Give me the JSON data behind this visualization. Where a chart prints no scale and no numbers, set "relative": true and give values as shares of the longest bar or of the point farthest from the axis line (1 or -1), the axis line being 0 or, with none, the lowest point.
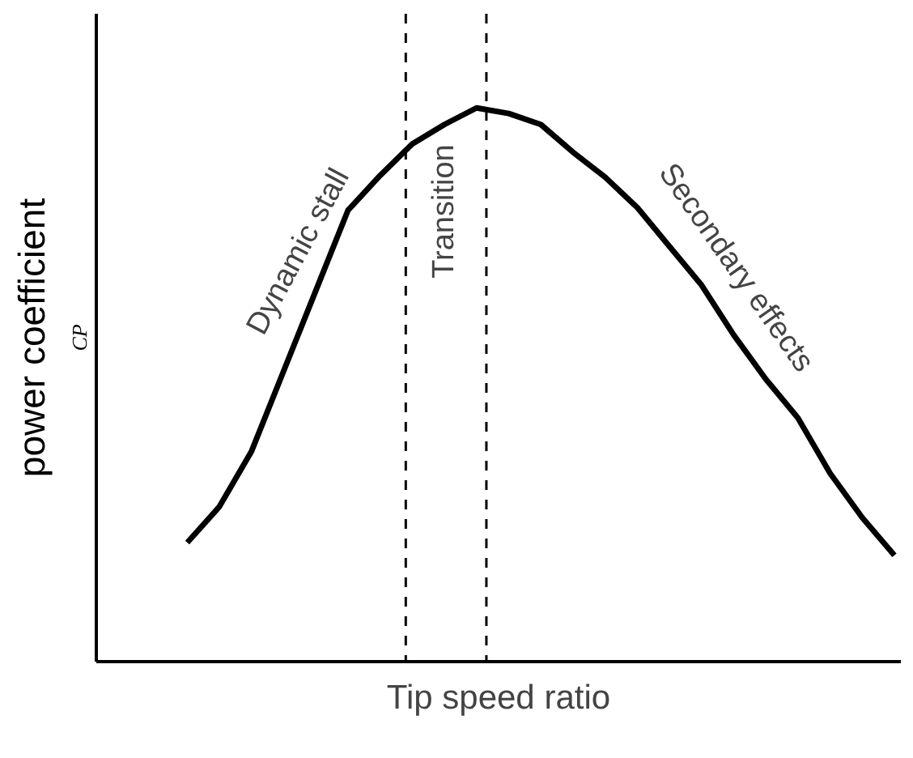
{
  "chart_data": {
    "type": "line",
    "relative": true,
    "xlabel": "Tip speed ratio",
    "ylabel": "power coefficient",
    "annotations": [
      "CP",
      "Dynamic stall",
      "Transition",
      "Secondary effects"
    ],
    "categories": [
      null,
      null,
      null,
      null,
      null,
      null,
      null,
      null,
      null,
      null,
      null,
      null,
      null,
      null,
      null,
      null,
      null,
      null,
      null,
      null,
      null,
      null,
      null
    ],
    "series": [
      {
        "color": "#000000",
        "values": [
          0.215,
          0.28,
          0.38,
          0.525,
          0.67,
          0.815,
          0.878,
          0.935,
          0.97,
          1,
          0.99,
          0.97,
          0.92,
          0.875,
          0.82,
          0.75,
          0.68,
          0.59,
          0.51,
          0.44,
          0.34,
          0.26,
          0.192
        ]
      }
    ],
    "grid": false,
    "line_style": "solid",
    "marker": "none"
  }
}
